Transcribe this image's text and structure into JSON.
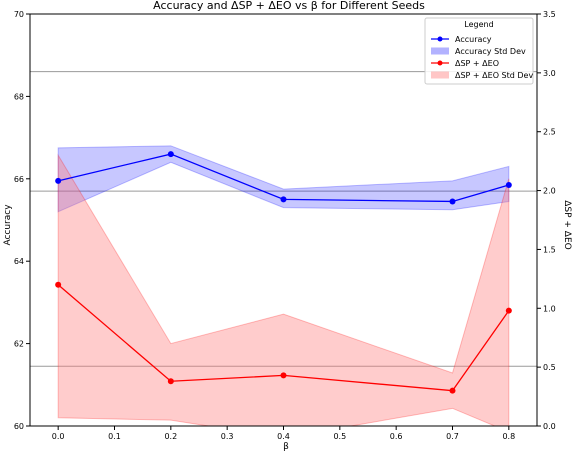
{
  "chart_data": {
    "type": "line",
    "title": "Accuracy and ΔSP + ΔEO vs β for Different Seeds",
    "xlabel": "β",
    "ylabel_left": "Accuracy",
    "ylabel_right": "ΔSP + ΔEO",
    "x": [
      0.0,
      0.2,
      0.4,
      0.7,
      0.8
    ],
    "xlim": [
      -0.05,
      0.85
    ],
    "xticks": [
      0.0,
      0.1,
      0.2,
      0.3,
      0.4,
      0.5,
      0.6,
      0.7,
      0.8
    ],
    "xtick_labels": [
      "0.0",
      "0.1",
      "0.2",
      "0.3",
      "0.4",
      "0.5",
      "0.6",
      "0.7",
      "0.8"
    ],
    "ylim_left": [
      60,
      70
    ],
    "yticks_left": [
      60,
      62,
      64,
      66,
      68,
      70
    ],
    "ytick_labels_left": [
      "60",
      "62",
      "64",
      "66",
      "68",
      "70"
    ],
    "ylim_right": [
      0.0,
      3.5
    ],
    "yticks_right": [
      0.0,
      0.5,
      1.0,
      1.5,
      2.0,
      2.5,
      3.0,
      3.5
    ],
    "ytick_labels_right": [
      "0.0",
      "0.5",
      "1.0",
      "1.5",
      "2.0",
      "2.5",
      "3.0",
      "3.5"
    ],
    "hlines_left": [
      61.45,
      65.7,
      68.6
    ],
    "series": [
      {
        "name": "Accuracy",
        "axis": "left",
        "color": "#0000ff",
        "values": [
          65.95,
          66.6,
          65.5,
          65.45,
          65.85
        ],
        "band_upper": [
          66.75,
          66.8,
          65.75,
          65.95,
          66.3
        ],
        "band_lower": [
          65.2,
          66.4,
          65.3,
          65.25,
          65.45
        ],
        "band_name": "Accuracy Std Dev",
        "band_color": "#0000ff"
      },
      {
        "name": "ΔSP + ΔEO",
        "axis": "right",
        "color": "#ff0000",
        "values": [
          1.2,
          0.38,
          0.43,
          0.3,
          0.98
        ],
        "band_upper": [
          2.3,
          0.7,
          0.95,
          0.45,
          2.1
        ],
        "band_lower": [
          0.07,
          0.05,
          -0.1,
          0.15,
          -0.05
        ],
        "band_name": "ΔSP + ΔEO Std Dev",
        "band_color": "#ff8080"
      }
    ],
    "legend": {
      "title": "Legend",
      "placement": "top-right",
      "entries": [
        "Accuracy",
        "Accuracy Std Dev",
        "ΔSP + ΔEO",
        "ΔSP + ΔEO Std Dev"
      ]
    },
    "grid": false
  }
}
